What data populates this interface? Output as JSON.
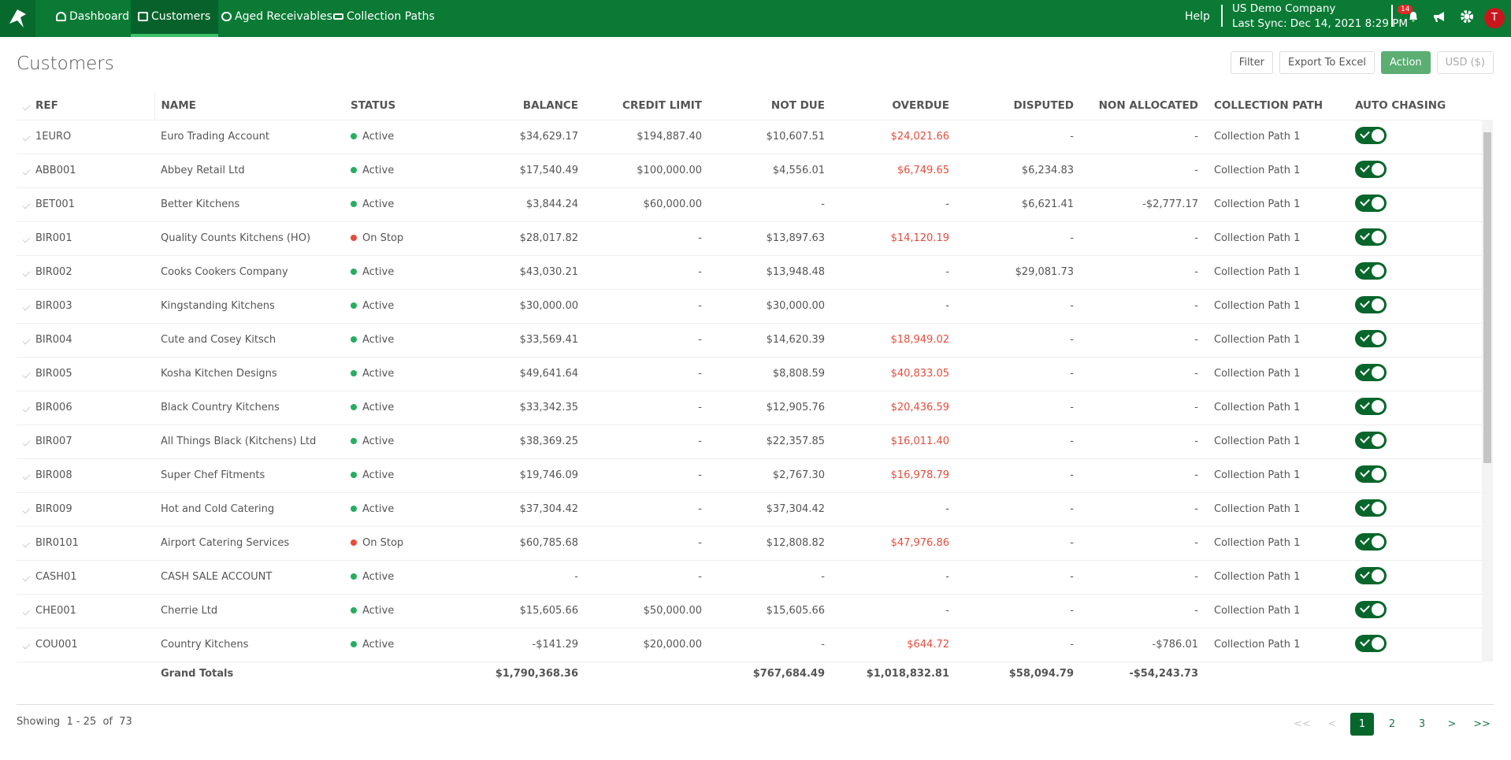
{
  "nav": {
    "items": [
      "Dashboard",
      "Customers",
      "Aged Receivables",
      "Collection Paths"
    ],
    "help": "Help",
    "company": "US Demo Company",
    "sync": "Last Sync: Dec 14, 2021 8:29 PM",
    "notifications": "14",
    "avatar": "T"
  },
  "page": {
    "title": "Customers",
    "buttons": [
      "Filter",
      "Export To Excel",
      "Action",
      "USD ($)"
    ]
  },
  "table": {
    "columns": [
      "REF",
      "NAME",
      "STATUS",
      "BALANCE",
      "CREDIT LIMIT",
      "NOT DUE",
      "OVERDUE",
      "DISPUTED",
      "NON ALLOCATED",
      "COLLECTION PATH",
      "AUTO CHASING"
    ],
    "rows": [
      [
        "1EURO",
        "Euro Trading Account",
        "Active",
        "$34,629.17",
        "$194,887.40",
        "$10,607.51",
        "$24,021.66",
        "-",
        "-",
        "Collection Path 1"
      ],
      [
        "ABB001",
        "Abbey Retail Ltd",
        "Active",
        "$17,540.49",
        "$100,000.00",
        "$4,556.01",
        "$6,749.65",
        "$6,234.83",
        "-",
        "Collection Path 1"
      ],
      [
        "BET001",
        "Better Kitchens",
        "Active",
        "$3,844.24",
        "$60,000.00",
        "-",
        "-",
        "$6,621.41",
        "-$2,777.17",
        "Collection Path 1"
      ],
      [
        "BIR001",
        "Quality Counts Kitchens (HO)",
        "On Stop",
        "$28,017.82",
        "-",
        "$13,897.63",
        "$14,120.19",
        "-",
        "-",
        "Collection Path 1"
      ],
      [
        "BIR002",
        "Cooks Cookers Company",
        "Active",
        "$43,030.21",
        "-",
        "$13,948.48",
        "-",
        "$29,081.73",
        "-",
        "Collection Path 1"
      ],
      [
        "BIR003",
        "Kingstanding Kitchens",
        "Active",
        "$30,000.00",
        "-",
        "$30,000.00",
        "-",
        "-",
        "-",
        "Collection Path 1"
      ],
      [
        "BIR004",
        "Cute and Cosey Kitsch",
        "Active",
        "$33,569.41",
        "-",
        "$14,620.39",
        "$18,949.02",
        "-",
        "-",
        "Collection Path 1"
      ],
      [
        "BIR005",
        "Kosha Kitchen Designs",
        "Active",
        "$49,641.64",
        "-",
        "$8,808.59",
        "$40,833.05",
        "-",
        "-",
        "Collection Path 1"
      ],
      [
        "BIR006",
        "Black Country Kitchens",
        "Active",
        "$33,342.35",
        "-",
        "$12,905.76",
        "$20,436.59",
        "-",
        "-",
        "Collection Path 1"
      ],
      [
        "BIR007",
        "All Things Black (Kitchens) Ltd",
        "Active",
        "$38,369.25",
        "-",
        "$22,357.85",
        "$16,011.40",
        "-",
        "-",
        "Collection Path 1"
      ],
      [
        "BIR008",
        "Super Chef Fitments",
        "Active",
        "$19,746.09",
        "-",
        "$2,767.30",
        "$16,978.79",
        "-",
        "-",
        "Collection Path 1"
      ],
      [
        "BIR009",
        "Hot and Cold Catering",
        "Active",
        "$37,304.42",
        "-",
        "$37,304.42",
        "-",
        "-",
        "-",
        "Collection Path 1"
      ],
      [
        "BIR0101",
        "Airport Catering Services",
        "On Stop",
        "$60,785.68",
        "-",
        "$12,808.82",
        "$47,976.86",
        "-",
        "-",
        "Collection Path 1"
      ],
      [
        "CASH01",
        "CASH SALE ACCOUNT",
        "Active",
        "-",
        "-",
        "-",
        "-",
        "-",
        "-",
        "Collection Path 1"
      ],
      [
        "CHE001",
        "Cherrie Ltd",
        "Active",
        "$15,605.66",
        "$50,000.00",
        "$15,605.66",
        "-",
        "-",
        "-",
        "Collection Path 1"
      ],
      [
        "COU001",
        "Country Kitchens",
        "Active",
        "-$141.29",
        "$20,000.00",
        "-",
        "$644.72",
        "-",
        "-$786.01",
        "Collection Path 1"
      ]
    ],
    "totals": {
      "label": "Grand Totals",
      "balance": "$1,790,368.36",
      "not_due": "$767,684.49",
      "overdue": "$1,018,832.81",
      "disputed": "$58,094.79",
      "non_allocated": "-$54,243.73"
    }
  },
  "pagination": {
    "showing": "Showing  1 - 25  of  73",
    "pages": [
      "<<",
      "<",
      "1",
      "2",
      "3",
      ">",
      ">>"
    ]
  }
}
